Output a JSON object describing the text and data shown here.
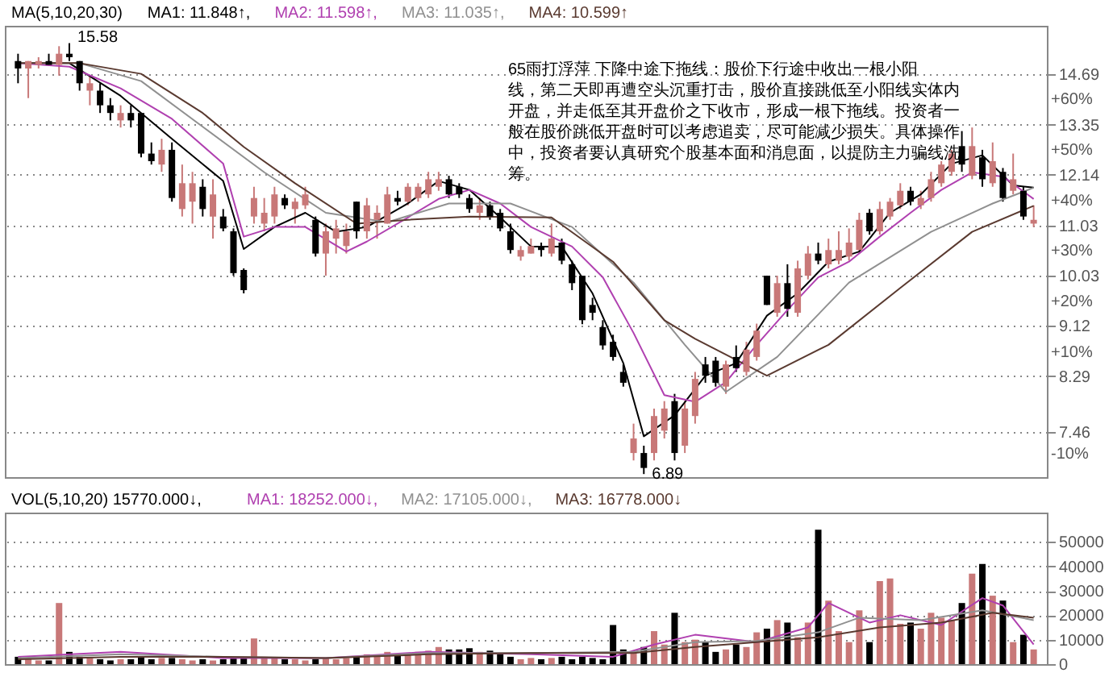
{
  "chart_data": [
    {
      "type": "candlestick",
      "legend_title": "MA(5,10,20,30)",
      "legend": "top left",
      "log": "y",
      "grid": "y",
      "tick_labels": "y",
      "ylim": [
        6.85,
        16.1
      ],
      "yticks": [
        14.69,
        13.35,
        12.14,
        11.03,
        10.03,
        9.12,
        8.29,
        7.46
      ],
      "y2lim": [
        -14.8,
        74.3
      ],
      "y2ticks": [
        {
          "value": 60,
          "label": "+60%"
        },
        {
          "value": 50,
          "label": "+50%"
        },
        {
          "value": 40,
          "label": "+40%"
        },
        {
          "value": 30,
          "label": "+30%"
        },
        {
          "value": 20,
          "label": "+20%"
        },
        {
          "value": 10,
          "label": "+10%"
        },
        {
          "value": -10,
          "label": "-10%"
        }
      ],
      "categories": [
        null,
        null,
        null,
        null,
        null,
        null,
        null,
        null,
        null,
        null,
        null,
        null,
        null,
        null,
        null,
        null,
        null,
        null,
        null,
        null,
        null,
        null,
        null,
        null,
        null,
        null,
        null,
        null,
        null,
        null,
        null,
        null,
        null,
        null,
        null,
        null,
        null,
        null,
        null,
        null,
        null,
        null,
        null,
        null,
        null,
        null,
        null,
        null,
        null,
        null,
        null,
        null,
        null,
        null,
        null,
        null,
        null,
        null,
        null,
        null,
        null,
        null,
        null,
        null,
        null,
        null,
        null,
        null,
        null,
        null,
        null,
        null,
        null,
        null,
        null,
        null,
        null,
        null,
        null,
        null,
        null,
        null,
        null,
        null,
        null,
        null,
        null,
        null,
        null,
        null,
        null,
        null,
        null,
        null,
        null,
        null,
        null,
        null,
        null,
        null
      ],
      "ohlc": [
        [
          15.06,
          15.27,
          14.44,
          14.85
        ],
        [
          14.85,
          15.06,
          14.04,
          15.06
        ],
        [
          14.95,
          15.17,
          14.85,
          15.06
        ],
        [
          15.06,
          15.27,
          14.95,
          14.95
        ],
        [
          14.95,
          15.49,
          14.65,
          15.27
        ],
        [
          15.27,
          15.58,
          15.06,
          15.17
        ],
        [
          15.06,
          15.06,
          14.24,
          14.44
        ],
        [
          14.24,
          14.65,
          13.85,
          14.44
        ],
        [
          14.24,
          14.44,
          13.65,
          13.85
        ],
        [
          13.85,
          14.04,
          13.46,
          13.65
        ],
        [
          13.46,
          13.85,
          13.28,
          13.65
        ],
        [
          13.65,
          13.85,
          13.28,
          13.46
        ],
        [
          13.65,
          13.65,
          12.55,
          12.64
        ],
        [
          12.64,
          12.91,
          12.38,
          12.46
        ],
        [
          12.38,
          13.0,
          12.21,
          12.73
        ],
        [
          12.73,
          12.91,
          11.54,
          11.62
        ],
        [
          11.38,
          12.38,
          11.22,
          11.95
        ],
        [
          11.54,
          12.21,
          11.07,
          11.95
        ],
        [
          11.87,
          12.04,
          11.22,
          11.38
        ],
        [
          11.22,
          12.04,
          10.76,
          11.7
        ],
        [
          11.22,
          11.38,
          10.91,
          10.97
        ],
        [
          10.91,
          10.97,
          10.03,
          10.08
        ],
        [
          10.14,
          10.17,
          9.7,
          9.76
        ],
        [
          11.22,
          11.87,
          11.07,
          11.62
        ],
        [
          11.07,
          11.62,
          10.91,
          11.3
        ],
        [
          11.22,
          11.87,
          11.07,
          11.7
        ],
        [
          11.62,
          11.7,
          11.38,
          11.46
        ],
        [
          11.38,
          11.62,
          11.07,
          11.54
        ],
        [
          11.46,
          11.87,
          11.38,
          11.7
        ],
        [
          11.15,
          11.22,
          10.4,
          10.46
        ],
        [
          10.46,
          11.07,
          10.03,
          10.91
        ],
        [
          10.76,
          11.15,
          10.46,
          10.97
        ],
        [
          10.61,
          11.07,
          10.46,
          10.91
        ],
        [
          11.54,
          11.54,
          10.76,
          10.91
        ],
        [
          10.91,
          11.62,
          10.76,
          11.46
        ],
        [
          11.15,
          11.46,
          10.76,
          11.3
        ],
        [
          11.07,
          11.87,
          11.07,
          11.7
        ],
        [
          11.62,
          11.78,
          11.46,
          11.54
        ],
        [
          11.54,
          11.95,
          11.46,
          11.87
        ],
        [
          11.62,
          11.95,
          11.54,
          11.87
        ],
        [
          11.7,
          12.21,
          11.62,
          12.04
        ],
        [
          11.87,
          12.21,
          11.78,
          12.04
        ],
        [
          12.04,
          12.12,
          11.62,
          11.7
        ],
        [
          11.87,
          11.95,
          11.62,
          11.7
        ],
        [
          11.62,
          11.7,
          11.3,
          11.38
        ],
        [
          11.3,
          11.62,
          11.15,
          11.46
        ],
        [
          11.46,
          11.54,
          11.15,
          11.22
        ],
        [
          11.3,
          11.38,
          10.91,
          10.97
        ],
        [
          10.91,
          11.07,
          10.46,
          10.53
        ],
        [
          10.4,
          10.61,
          10.32,
          10.53
        ],
        [
          10.46,
          10.76,
          10.46,
          10.61
        ],
        [
          10.61,
          10.68,
          10.4,
          10.53
        ],
        [
          10.46,
          11.07,
          10.4,
          10.76
        ],
        [
          10.68,
          10.76,
          10.25,
          10.32
        ],
        [
          10.25,
          10.32,
          9.76,
          9.89
        ],
        [
          10.03,
          10.03,
          9.15,
          9.22
        ],
        [
          9.49,
          9.62,
          9.22,
          9.35
        ],
        [
          9.1,
          9.22,
          8.72,
          8.79
        ],
        [
          8.85,
          8.97,
          8.54,
          8.6
        ],
        [
          8.36,
          8.48,
          8.13,
          8.19
        ],
        [
          7.17,
          7.58,
          7.07,
          7.37
        ],
        [
          7.17,
          7.27,
          6.89,
          6.97
        ],
        [
          7.17,
          7.8,
          7.07,
          7.69
        ],
        [
          7.48,
          7.91,
          7.37,
          7.8
        ],
        [
          7.91,
          8.02,
          7.07,
          7.17
        ],
        [
          7.27,
          7.91,
          7.17,
          7.8
        ],
        [
          7.69,
          8.36,
          7.58,
          8.25
        ],
        [
          8.48,
          8.6,
          8.19,
          8.3
        ],
        [
          8.54,
          8.6,
          8.13,
          8.19
        ],
        [
          8.13,
          8.54,
          8.02,
          8.48
        ],
        [
          8.6,
          8.79,
          8.36,
          8.42
        ],
        [
          8.36,
          8.85,
          8.3,
          8.72
        ],
        [
          8.6,
          9.16,
          8.54,
          9.04
        ],
        [
          10.03,
          10.03,
          9.49,
          9.49
        ],
        [
          9.35,
          10.03,
          9.28,
          9.89
        ],
        [
          9.89,
          10.25,
          9.28,
          9.42
        ],
        [
          9.35,
          10.32,
          9.28,
          10.17
        ],
        [
          10.03,
          10.61,
          9.96,
          10.46
        ],
        [
          10.46,
          10.68,
          10.25,
          10.32
        ],
        [
          10.25,
          10.76,
          10.17,
          10.53
        ],
        [
          10.32,
          10.91,
          10.25,
          10.53
        ],
        [
          10.4,
          10.97,
          10.32,
          10.68
        ],
        [
          10.53,
          11.3,
          10.46,
          11.15
        ],
        [
          11.3,
          11.38,
          10.84,
          10.91
        ],
        [
          10.91,
          11.54,
          10.84,
          11.38
        ],
        [
          11.22,
          11.62,
          11.15,
          11.54
        ],
        [
          11.46,
          11.95,
          11.38,
          11.78
        ],
        [
          11.78,
          11.87,
          11.46,
          11.54
        ],
        [
          11.46,
          11.78,
          11.38,
          11.62
        ],
        [
          11.62,
          12.21,
          11.54,
          12.04
        ],
        [
          11.95,
          12.46,
          11.87,
          12.38
        ],
        [
          12.21,
          12.73,
          12.12,
          12.64
        ],
        [
          12.82,
          13.19,
          12.21,
          12.38
        ],
        [
          12.12,
          13.28,
          12.04,
          12.82
        ],
        [
          12.55,
          12.73,
          11.87,
          12.04
        ],
        [
          11.95,
          12.91,
          11.87,
          12.46
        ],
        [
          12.21,
          12.3,
          11.54,
          11.62
        ],
        [
          11.78,
          12.64,
          11.7,
          12.04
        ],
        [
          11.78,
          11.87,
          11.15,
          11.22
        ],
        [
          11.07,
          11.46,
          11.0,
          11.15
        ]
      ],
      "colors": [
        "#000000",
        "#c87878",
        "#c87878",
        "#000000",
        "#c87878",
        "#000000",
        "#000000",
        "#c87878",
        "#000000",
        "#000000",
        "#c87878",
        "#000000",
        "#000000",
        "#000000",
        "#c87878",
        "#000000",
        "#c87878",
        "#c87878",
        "#000000",
        "#c87878",
        "#000000",
        "#000000",
        "#000000",
        "#c87878",
        "#c87878",
        "#c87878",
        "#000000",
        "#c87878",
        "#c87878",
        "#000000",
        "#c87878",
        "#c87878",
        "#c87878",
        "#000000",
        "#c87878",
        "#c87878",
        "#c87878",
        "#000000",
        "#c87878",
        "#c87878",
        "#c87878",
        "#c87878",
        "#000000",
        "#000000",
        "#000000",
        "#c87878",
        "#000000",
        "#000000",
        "#000000",
        "#c87878",
        "#c87878",
        "#000000",
        "#c87878",
        "#000000",
        "#000000",
        "#000000",
        "#000000",
        "#000000",
        "#000000",
        "#000000",
        "#c87878",
        "#000000",
        "#c87878",
        "#c87878",
        "#000000",
        "#c87878",
        "#c87878",
        "#000000",
        "#000000",
        "#c87878",
        "#000000",
        "#c87878",
        "#c87878",
        "#000000",
        "#c87878",
        "#000000",
        "#c87878",
        "#c87878",
        "#000000",
        "#c87878",
        "#c87878",
        "#c87878",
        "#c87878",
        "#000000",
        "#c87878",
        "#c87878",
        "#c87878",
        "#000000",
        "#c87878",
        "#c87878",
        "#c87878",
        "#c87878",
        "#000000",
        "#c87878",
        "#000000",
        "#c87878",
        "#000000",
        "#c87878",
        "#000000",
        "#c87878"
      ],
      "series": [
        {
          "name": "MA1: 11.848↑,",
          "type": "line",
          "color": "#000000",
          "values": [
            null,
            15.0,
            null,
            null,
            null,
            15.0,
            null,
            null,
            null,
            null,
            14.1,
            null,
            null,
            null,
            null,
            13.0,
            null,
            null,
            null,
            null,
            12.0,
            null,
            10.55,
            null,
            null,
            11.0,
            null,
            null,
            11.3,
            null,
            null,
            10.9,
            null,
            null,
            11.0,
            null,
            null,
            null,
            11.5,
            null,
            null,
            12.0,
            null,
            null,
            11.8,
            null,
            null,
            11.2,
            null,
            null,
            10.6,
            null,
            null,
            10.6,
            null,
            null,
            9.7,
            null,
            null,
            8.5,
            null,
            7.4,
            null,
            null,
            7.7,
            null,
            null,
            8.3,
            null,
            null,
            8.5,
            null,
            null,
            9.3,
            null,
            null,
            9.7,
            null,
            null,
            10.3,
            null,
            null,
            10.5,
            null,
            null,
            11.3,
            null,
            null,
            11.7,
            null,
            null,
            12.4,
            null,
            null,
            12.6,
            null,
            null,
            11.9,
            null,
            11.85
          ]
        },
        {
          "name": "MA2: 11.598↑,",
          "type": "line",
          "color": "#b040b0",
          "values": [
            15.0,
            null,
            null,
            null,
            null,
            14.9,
            null,
            null,
            null,
            null,
            14.3,
            null,
            null,
            null,
            null,
            13.5,
            null,
            null,
            null,
            null,
            12.4,
            null,
            10.8,
            null,
            null,
            11.0,
            null,
            null,
            11.0,
            null,
            null,
            null,
            10.5,
            null,
            10.7,
            null,
            null,
            null,
            11.2,
            null,
            null,
            11.6,
            null,
            null,
            11.8,
            null,
            null,
            11.5,
            null,
            null,
            11.0,
            null,
            null,
            null,
            10.6,
            null,
            null,
            10.0,
            null,
            null,
            9.0,
            null,
            null,
            8.0,
            null,
            null,
            7.9,
            null,
            null,
            8.2,
            null,
            null,
            8.8,
            null,
            null,
            9.4,
            null,
            null,
            10.0,
            null,
            null,
            10.3,
            null,
            null,
            10.8,
            null,
            null,
            11.3,
            null,
            null,
            11.8,
            null,
            null,
            12.2,
            null,
            null,
            12.1,
            null,
            null,
            11.6
          ]
        },
        {
          "name": "MA3: 11.035↑,",
          "type": "line",
          "color": "#909090",
          "values": [
            15.0,
            null,
            null,
            null,
            null,
            null,
            15.0,
            null,
            null,
            null,
            null,
            null,
            14.5,
            null,
            null,
            null,
            null,
            null,
            13.3,
            null,
            null,
            null,
            null,
            null,
            12.2,
            null,
            null,
            null,
            null,
            null,
            11.3,
            null,
            null,
            null,
            null,
            null,
            11.1,
            null,
            null,
            null,
            null,
            null,
            11.5,
            null,
            null,
            null,
            null,
            null,
            11.5,
            null,
            null,
            null,
            null,
            null,
            11.0,
            null,
            null,
            null,
            null,
            null,
            9.9,
            null,
            null,
            null,
            null,
            8.8,
            null,
            null,
            null,
            8.05,
            null,
            null,
            null,
            null,
            8.6,
            null,
            null,
            null,
            null,
            null,
            null,
            9.9,
            null,
            null,
            null,
            null,
            null,
            null,
            null,
            10.9,
            null,
            null,
            null,
            null,
            null,
            11.5,
            null,
            null,
            null,
            11.85
          ]
        },
        {
          "name": "MA4: 10.599↑",
          "type": "line",
          "color": "#5a3a30",
          "values": [
            15.0,
            null,
            null,
            null,
            null,
            null,
            15.0,
            null,
            null,
            null,
            null,
            null,
            14.7,
            null,
            null,
            null,
            null,
            null,
            13.65,
            null,
            null,
            null,
            12.8,
            null,
            null,
            null,
            null,
            11.95,
            null,
            null,
            null,
            null,
            null,
            11.07,
            null,
            null,
            null,
            null,
            11.15,
            null,
            null,
            null,
            null,
            null,
            11.22,
            null,
            null,
            null,
            null,
            null,
            null,
            null,
            11.2,
            null,
            null,
            null,
            null,
            null,
            10.3,
            null,
            null,
            null,
            null,
            9.22,
            null,
            null,
            8.9,
            null,
            null,
            null,
            null,
            null,
            null,
            8.3,
            null,
            null,
            null,
            null,
            null,
            8.8,
            null,
            null,
            null,
            null,
            null,
            null,
            9.8,
            null,
            null,
            null,
            null,
            null,
            null,
            10.9,
            null,
            null,
            null,
            null,
            null,
            11.45
          ]
        }
      ],
      "annotations": [
        "15.58",
        "6.89",
        "65雨打浮萍  下降中途下拖线：股价下行途中收出一根小阳线，第二天即再遭空头沉重打击，股价直接跳低至小阳线实体内开盘，并走低至其开盘价之下收市，形成一根下拖线。投资者一般在股价跳低开盘时可以考虑追卖，尽可能减少损失。具体操作中，投资者要认真研究个股基本面和消息面，以提防主力骗线洗筹。"
      ]
    },
    {
      "type": "bar",
      "legend_title": "VOL(5,10,20)  15770.000↓,",
      "legend": "top left",
      "grid": "y",
      "tick_labels": "y",
      "ylim": [
        0,
        62000
      ],
      "yticks": [
        0,
        10000,
        20000,
        30000,
        40000,
        50000
      ],
      "categories": [
        null,
        null,
        null,
        null,
        null,
        null,
        null,
        null,
        null,
        null,
        null,
        null,
        null,
        null,
        null,
        null,
        null,
        null,
        null,
        null,
        null,
        null,
        null,
        null,
        null,
        null,
        null,
        null,
        null,
        null,
        null,
        null,
        null,
        null,
        null,
        null,
        null,
        null,
        null,
        null,
        null,
        null,
        null,
        null,
        null,
        null,
        null,
        null,
        null,
        null,
        null,
        null,
        null,
        null,
        null,
        null,
        null,
        null,
        null,
        null,
        null,
        null,
        null,
        null,
        null,
        null,
        null,
        null,
        null,
        null,
        null,
        null,
        null,
        null,
        null,
        null,
        null,
        null,
        null,
        null,
        null,
        null,
        null,
        null,
        null,
        null,
        null,
        null,
        null,
        null,
        null,
        null,
        null,
        null,
        null,
        null,
        null,
        null,
        null,
        null
      ],
      "values": [
        3000,
        2000,
        1500,
        1500,
        25000,
        5000,
        3000,
        2500,
        2000,
        1500,
        2000,
        2000,
        3000,
        2000,
        2500,
        2500,
        2000,
        1500,
        2000,
        1500,
        2000,
        2500,
        3000,
        10500,
        3000,
        2500,
        2000,
        2000,
        1500,
        2000,
        2500,
        2000,
        2500,
        3000,
        4000,
        3500,
        5000,
        4000,
        4500,
        5000,
        5500,
        7000,
        6000,
        6000,
        6500,
        5000,
        5500,
        4000,
        3000,
        2000,
        2500,
        2000,
        2500,
        3000,
        2000,
        3000,
        2500,
        2000,
        16000,
        6000,
        5000,
        7000,
        13500,
        8000,
        21000,
        9000,
        10000,
        9000,
        5000,
        6000,
        8000,
        7000,
        13000,
        14500,
        18000,
        17000,
        11000,
        17000,
        55000,
        26000,
        13500,
        9000,
        22000,
        9000,
        34000,
        35000,
        16500,
        17000,
        14500,
        21000,
        19000,
        18000,
        25000,
        37000,
        41000,
        28000,
        26000,
        9000,
        12000,
        6000
      ],
      "colors": [
        "#000000",
        "#c87878",
        "#c87878",
        "#000000",
        "#c87878",
        "#000000",
        "#000000",
        "#c87878",
        "#000000",
        "#000000",
        "#c87878",
        "#000000",
        "#000000",
        "#000000",
        "#c87878",
        "#000000",
        "#c87878",
        "#c87878",
        "#000000",
        "#c87878",
        "#000000",
        "#000000",
        "#000000",
        "#c87878",
        "#c87878",
        "#c87878",
        "#000000",
        "#c87878",
        "#c87878",
        "#000000",
        "#c87878",
        "#c87878",
        "#c87878",
        "#000000",
        "#c87878",
        "#c87878",
        "#c87878",
        "#000000",
        "#c87878",
        "#c87878",
        "#c87878",
        "#c87878",
        "#000000",
        "#000000",
        "#000000",
        "#c87878",
        "#000000",
        "#000000",
        "#000000",
        "#c87878",
        "#c87878",
        "#000000",
        "#c87878",
        "#000000",
        "#000000",
        "#000000",
        "#000000",
        "#000000",
        "#000000",
        "#000000",
        "#c87878",
        "#000000",
        "#c87878",
        "#c87878",
        "#000000",
        "#c87878",
        "#c87878",
        "#000000",
        "#000000",
        "#c87878",
        "#000000",
        "#c87878",
        "#c87878",
        "#000000",
        "#c87878",
        "#000000",
        "#c87878",
        "#c87878",
        "#000000",
        "#c87878",
        "#c87878",
        "#c87878",
        "#c87878",
        "#000000",
        "#c87878",
        "#c87878",
        "#c87878",
        "#000000",
        "#c87878",
        "#c87878",
        "#c87878",
        "#c87878",
        "#000000",
        "#c87878",
        "#000000",
        "#c87878",
        "#000000",
        "#c87878",
        "#000000",
        "#c87878"
      ],
      "series": [
        {
          "name": "MA1: 18252.000↓,",
          "type": "line",
          "color": "#b040b0",
          "values": [
            3000,
            null,
            null,
            null,
            null,
            null,
            null,
            null,
            null,
            null,
            5000,
            null,
            null,
            null,
            null,
            null,
            null,
            null,
            null,
            null,
            2500,
            null,
            null,
            null,
            null,
            null,
            null,
            null,
            null,
            null,
            2500,
            null,
            null,
            null,
            null,
            null,
            null,
            null,
            null,
            null,
            5000,
            null,
            null,
            null,
            null,
            null,
            null,
            null,
            null,
            null,
            4000,
            null,
            null,
            null,
            null,
            null,
            null,
            null,
            3000,
            null,
            null,
            null,
            8000,
            null,
            null,
            null,
            12000,
            null,
            null,
            null,
            null,
            null,
            9000,
            null,
            null,
            null,
            null,
            15000,
            null,
            25000,
            null,
            null,
            null,
            17000,
            null,
            null,
            20000,
            null,
            null,
            null,
            16000,
            null,
            null,
            null,
            27000,
            null,
            24000,
            null,
            null,
            8000
          ]
        },
        {
          "name": "MA2: 17105.000↓,",
          "type": "line",
          "color": "#909090",
          "values": [
            2500,
            null,
            null,
            null,
            null,
            null,
            null,
            null,
            null,
            null,
            4000,
            null,
            null,
            null,
            null,
            null,
            null,
            null,
            null,
            null,
            3000,
            null,
            null,
            null,
            null,
            null,
            null,
            null,
            null,
            null,
            2500,
            null,
            null,
            null,
            null,
            null,
            null,
            null,
            null,
            null,
            4500,
            null,
            null,
            null,
            null,
            null,
            null,
            null,
            null,
            null,
            4500,
            null,
            null,
            null,
            null,
            null,
            null,
            null,
            null,
            null,
            5000,
            null,
            null,
            null,
            null,
            null,
            9000,
            null,
            null,
            null,
            null,
            null,
            9500,
            null,
            null,
            null,
            null,
            null,
            13000,
            null,
            null,
            null,
            19000,
            null,
            null,
            null,
            null,
            null,
            18000,
            null,
            null,
            null,
            null,
            null,
            22000,
            null,
            null,
            null,
            null,
            18000
          ]
        },
        {
          "name": "MA3: 16778.000↓",
          "type": "line",
          "color": "#5a3a30",
          "values": [
            2000,
            null,
            null,
            null,
            null,
            null,
            null,
            null,
            null,
            null,
            3000,
            null,
            null,
            null,
            null,
            null,
            null,
            null,
            null,
            null,
            3000,
            null,
            null,
            null,
            null,
            null,
            null,
            null,
            null,
            null,
            2500,
            null,
            null,
            null,
            null,
            null,
            null,
            null,
            null,
            null,
            4000,
            null,
            null,
            null,
            null,
            null,
            null,
            null,
            null,
            null,
            4500,
            null,
            null,
            null,
            null,
            null,
            null,
            null,
            null,
            null,
            4500,
            null,
            null,
            null,
            null,
            null,
            7000,
            null,
            null,
            null,
            null,
            null,
            9000,
            null,
            null,
            null,
            null,
            null,
            11000,
            null,
            null,
            null,
            null,
            null,
            15000,
            null,
            null,
            null,
            null,
            null,
            17000,
            null,
            null,
            null,
            null,
            21000,
            null,
            null,
            null,
            19000
          ]
        }
      ]
    }
  ]
}
